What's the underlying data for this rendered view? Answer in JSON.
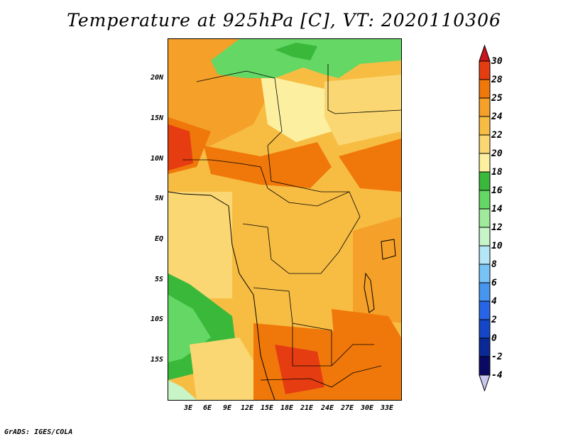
{
  "title": "Temperature at 925hPa [C], VT: 2020110306",
  "footer": "GrADS: IGES/COLA",
  "lat_labels": [
    "20N",
    "15N",
    "10N",
    "5N",
    "EQ",
    "5S",
    "10S",
    "15S"
  ],
  "lon_labels": [
    "3E",
    "6E",
    "9E",
    "12E",
    "15E",
    "18E",
    "21E",
    "24E",
    "27E",
    "30E",
    "33E"
  ],
  "colorbar": {
    "labels": [
      "30",
      "28",
      "25",
      "24",
      "22",
      "20",
      "18",
      "16",
      "14",
      "12",
      "10",
      "8",
      "6",
      "4",
      "2",
      "0",
      "-2",
      "-4"
    ],
    "colors": [
      "#c8141c",
      "#e63c12",
      "#f0780a",
      "#f5a028",
      "#f7bd43",
      "#fad772",
      "#fcf0a0",
      "#3ab83a",
      "#64d764",
      "#a0eb9b",
      "#c8f5c8",
      "#b4e6f5",
      "#78c3f5",
      "#4696f0",
      "#2864e6",
      "#1446c8",
      "#0a2896",
      "#0a0a64"
    ],
    "top_arrow_color": "#c8141c",
    "bottom_arrow_color": "#c8c8f0"
  },
  "colors": {
    "hot": "#e63c12",
    "warm": "#f0780a",
    "orange": "#f5a028",
    "light_orange": "#f7bd43",
    "pale": "#fad772",
    "cream": "#fcf0a0",
    "green": "#3ab83a",
    "light_green": "#64d764",
    "pale_green": "#a0eb9b",
    "cyan": "#c8f5c8",
    "borders": "#000000"
  }
}
